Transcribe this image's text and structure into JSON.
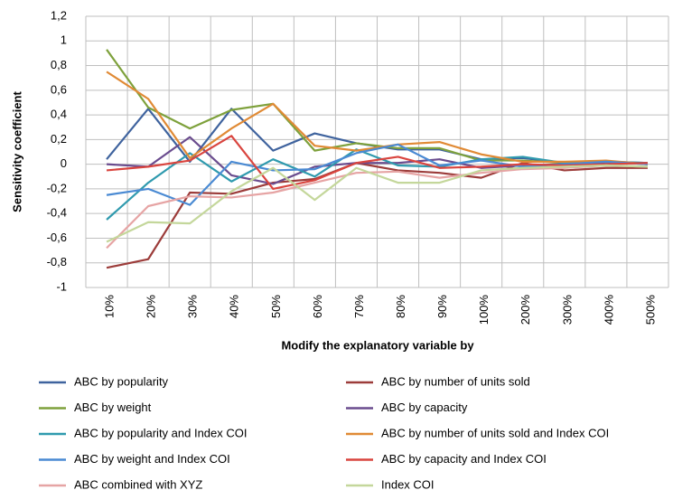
{
  "chart_data": {
    "type": "line",
    "x_label": "Modify the explanatory variable  by",
    "y_label": "Sensitivity coefficient",
    "categories": [
      "10%",
      "20%",
      "30%",
      "40%",
      "50%",
      "60%",
      "70%",
      "80%",
      "90%",
      "100%",
      "200%",
      "300%",
      "400%",
      "500%"
    ],
    "ylim": [
      -1,
      1.2
    ],
    "yticks": [
      {
        "value": 1.2,
        "label": "1,2"
      },
      1,
      {
        "value": 0.8,
        "label": "0,8"
      },
      {
        "value": 0.6,
        "label": "0,6"
      },
      {
        "value": 0.4,
        "label": "0,4"
      },
      {
        "value": 0.2,
        "label": "0,2"
      },
      0,
      {
        "value": -0.2,
        "label": "-0,2"
      },
      {
        "value": -0.4,
        "label": "-0,4"
      },
      {
        "value": -0.6,
        "label": "-0,6"
      },
      {
        "value": -0.8,
        "label": "-0,8"
      },
      -1
    ],
    "grid": true,
    "legend": "bottom",
    "series": [
      {
        "name": "ABC by popularity",
        "color": "#3f639e",
        "values": [
          0.04,
          0.45,
          0.02,
          0.45,
          0.11,
          0.25,
          0.17,
          0.12,
          0.12,
          0.04,
          0.05,
          0.01,
          0.02,
          0.01
        ]
      },
      {
        "name": "ABC by number of  units sold",
        "color": "#9c3c3a",
        "values": [
          -0.84,
          -0.77,
          -0.23,
          -0.24,
          -0.15,
          -0.12,
          0.01,
          -0.05,
          -0.07,
          -0.11,
          0.01,
          -0.05,
          -0.03,
          -0.03
        ]
      },
      {
        "name": "ABC by weight",
        "color": "#7ea13c",
        "values": [
          0.93,
          0.46,
          0.29,
          0.44,
          0.49,
          0.11,
          0.17,
          0.13,
          0.13,
          0.03,
          0.03,
          0.01,
          0.02,
          0.0
        ]
      },
      {
        "name": "ABC by capacity",
        "color": "#6a4c8e",
        "values": [
          0.0,
          -0.02,
          0.22,
          -0.09,
          -0.16,
          -0.02,
          0.01,
          0.01,
          0.04,
          -0.03,
          -0.01,
          0.0,
          0.01,
          0.01
        ]
      },
      {
        "name": "ABC by popularity and Index COI",
        "color": "#2f9aae",
        "values": [
          -0.45,
          -0.15,
          0.09,
          -0.14,
          0.04,
          -0.1,
          0.12,
          -0.01,
          -0.02,
          0.04,
          0.06,
          0.01,
          0.02,
          0.01
        ]
      },
      {
        "name": "ABC by number of  units sold and Index COI",
        "color": "#e08a35",
        "values": [
          0.75,
          0.53,
          0.05,
          0.29,
          0.49,
          0.15,
          0.11,
          0.16,
          0.18,
          0.08,
          0.02,
          0.02,
          0.03,
          0.0
        ]
      },
      {
        "name": "ABC by weight and Index COI",
        "color": "#4a8ad3",
        "values": [
          -0.25,
          -0.2,
          -0.33,
          0.02,
          -0.05,
          -0.04,
          0.09,
          0.16,
          -0.01,
          0.03,
          -0.02,
          0.0,
          0.02,
          0.0
        ]
      },
      {
        "name": "ABC by capacity and Index COI",
        "color": "#d9453f",
        "values": [
          -0.05,
          -0.02,
          0.03,
          0.23,
          -0.2,
          -0.13,
          0.01,
          0.06,
          -0.03,
          -0.02,
          0.0,
          -0.01,
          0.0,
          0.01
        ]
      },
      {
        "name": "ABC combined with XYZ",
        "color": "#e6a4a4",
        "values": [
          -0.68,
          -0.34,
          -0.26,
          -0.27,
          -0.23,
          -0.15,
          -0.07,
          -0.06,
          -0.11,
          -0.07,
          -0.04,
          -0.03,
          -0.01,
          -0.02
        ]
      },
      {
        "name": "Index COI",
        "color": "#c4d79b",
        "values": [
          -0.63,
          -0.47,
          -0.48,
          -0.22,
          -0.03,
          -0.29,
          -0.03,
          -0.15,
          -0.15,
          -0.05,
          -0.03,
          -0.02,
          -0.01,
          -0.02
        ]
      }
    ]
  }
}
